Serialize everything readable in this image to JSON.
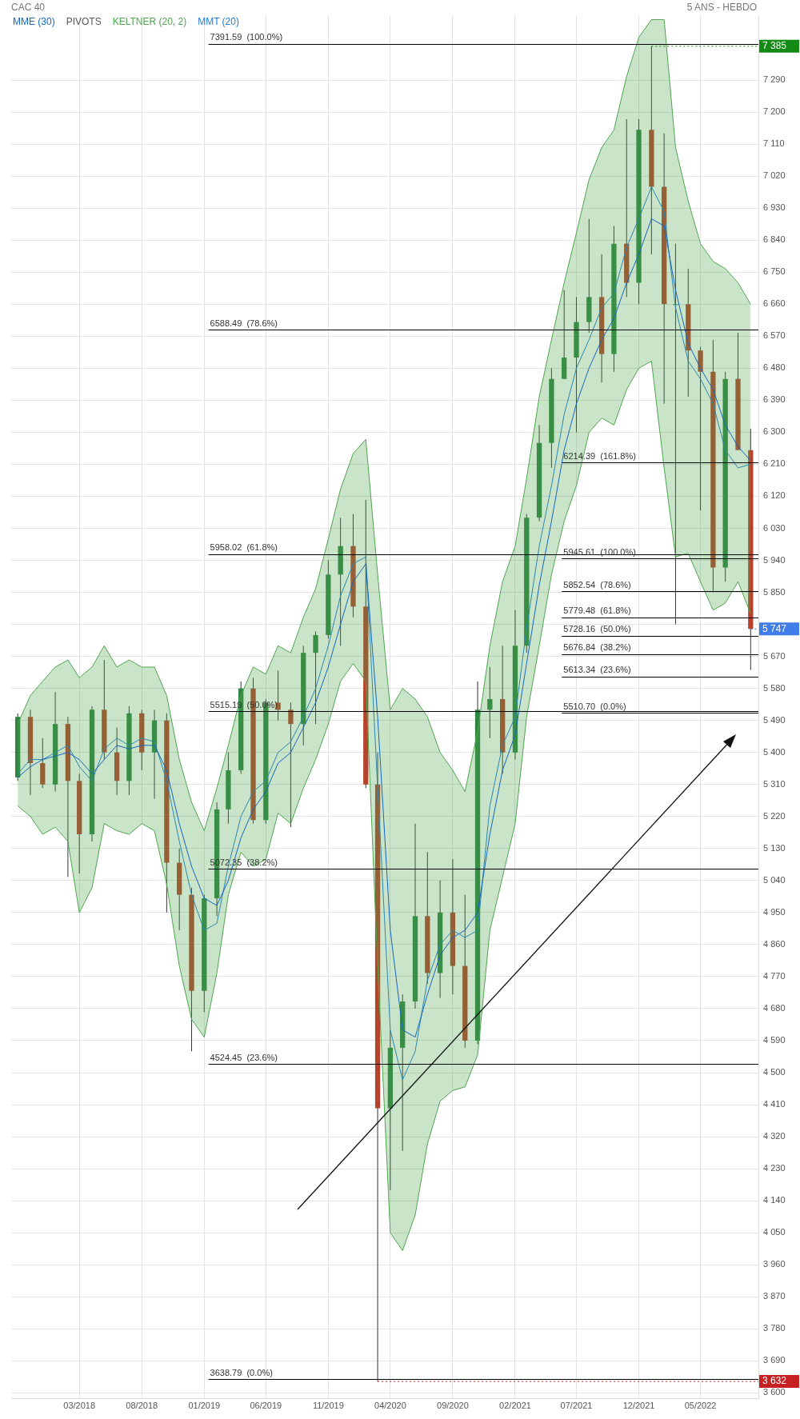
{
  "chart_data": {
    "type": "candlestick",
    "title": "CAC 40",
    "subtitle": "5 ANS - HEBDO",
    "legend": "top left",
    "grid": true,
    "marker": "none",
    "x": [
      "2017-10",
      "2017-11",
      "2017-12",
      "2018-01",
      "2018-02",
      "2018-03",
      "2018-04",
      "2018-05",
      "2018-06",
      "2018-07",
      "2018-08",
      "2018-09",
      "2018-10",
      "2018-11",
      "2018-12",
      "2019-01",
      "2019-02",
      "2019-03",
      "2019-04",
      "2019-05",
      "2019-06",
      "2019-07",
      "2019-08",
      "2019-09",
      "2019-10",
      "2019-11",
      "2019-12",
      "2020-01",
      "2020-02",
      "2020-03",
      "2020-04",
      "2020-05",
      "2020-06",
      "2020-07",
      "2020-08",
      "2020-09",
      "2020-10",
      "2020-11",
      "2020-12",
      "2021-01",
      "2021-02",
      "2021-03",
      "2021-04",
      "2021-05",
      "2021-06",
      "2021-07",
      "2021-08",
      "2021-09",
      "2021-10",
      "2021-11",
      "2021-12",
      "2022-01",
      "2022-02",
      "2022-03",
      "2022-04",
      "2022-05",
      "2022-06",
      "2022-07",
      "2022-08",
      "2022-09"
    ],
    "ohlc": [
      [
        5330,
        5510,
        5320,
        5500
      ],
      [
        5500,
        5520,
        5280,
        5370
      ],
      [
        5370,
        5440,
        5300,
        5310
      ],
      [
        5310,
        5570,
        5290,
        5480
      ],
      [
        5480,
        5500,
        5050,
        5320
      ],
      [
        5320,
        5340,
        5060,
        5170
      ],
      [
        5170,
        5530,
        5150,
        5520
      ],
      [
        5520,
        5660,
        5380,
        5400
      ],
      [
        5400,
        5470,
        5280,
        5320
      ],
      [
        5320,
        5530,
        5280,
        5510
      ],
      [
        5510,
        5520,
        5350,
        5400
      ],
      [
        5400,
        5520,
        5270,
        5490
      ],
      [
        5490,
        5510,
        4950,
        5090
      ],
      [
        5090,
        5130,
        4900,
        5000
      ],
      [
        5000,
        5020,
        4560,
        4730
      ],
      [
        4730,
        5000,
        4670,
        4990
      ],
      [
        4990,
        5260,
        4940,
        5240
      ],
      [
        5240,
        5400,
        5200,
        5350
      ],
      [
        5350,
        5600,
        5340,
        5580
      ],
      [
        5580,
        5610,
        5200,
        5210
      ],
      [
        5210,
        5550,
        5200,
        5540
      ],
      [
        5540,
        5630,
        5490,
        5520
      ],
      [
        5520,
        5540,
        5190,
        5480
      ],
      [
        5480,
        5700,
        5420,
        5680
      ],
      [
        5680,
        5740,
        5480,
        5730
      ],
      [
        5730,
        5940,
        5720,
        5900
      ],
      [
        5900,
        6060,
        5700,
        5980
      ],
      [
        5980,
        6070,
        5780,
        5810
      ],
      [
        5810,
        6110,
        5300,
        5310
      ],
      [
        5310,
        5400,
        3632,
        4400
      ],
      [
        4400,
        4620,
        4170,
        4570
      ],
      [
        4570,
        4720,
        4280,
        4700
      ],
      [
        4700,
        5200,
        4680,
        4940
      ],
      [
        4940,
        5120,
        4750,
        4780
      ],
      [
        4780,
        5040,
        4710,
        4950
      ],
      [
        4950,
        5100,
        4720,
        4800
      ],
      [
        4800,
        5000,
        4570,
        4590
      ],
      [
        4590,
        5600,
        4580,
        5520
      ],
      [
        5520,
        5640,
        5440,
        5550
      ],
      [
        5550,
        5700,
        5340,
        5400
      ],
      [
        5400,
        5800,
        5380,
        5700
      ],
      [
        5700,
        6070,
        5680,
        6060
      ],
      [
        6060,
        6320,
        6050,
        6270
      ],
      [
        6270,
        6480,
        6200,
        6450
      ],
      [
        6450,
        6700,
        6450,
        6510
      ],
      [
        6510,
        6680,
        6300,
        6610
      ],
      [
        6610,
        6900,
        6580,
        6680
      ],
      [
        6680,
        6800,
        6440,
        6520
      ],
      [
        6520,
        6880,
        6470,
        6830
      ],
      [
        6830,
        7180,
        6680,
        6720
      ],
      [
        6720,
        7180,
        6660,
        7150
      ],
      [
        7150,
        7385,
        6800,
        6990
      ],
      [
        6990,
        7140,
        6380,
        6660
      ],
      [
        6660,
        6830,
        5760,
        6660
      ],
      [
        6660,
        6760,
        6400,
        6530
      ],
      [
        6530,
        6540,
        6080,
        6470
      ],
      [
        6470,
        6560,
        5850,
        5920
      ],
      [
        5920,
        6470,
        5880,
        6450
      ],
      [
        6450,
        6580,
        6250,
        6250
      ],
      [
        6250,
        6310,
        5632,
        5747
      ]
    ],
    "series": [
      {
        "name": "MME (30)",
        "type": "line",
        "color": "#1565c0",
        "values": [
          5330,
          5360,
          5380,
          5390,
          5400,
          5380,
          5340,
          5380,
          5420,
          5410,
          5420,
          5420,
          5350,
          5200,
          5080,
          4990,
          4970,
          5040,
          5160,
          5240,
          5290,
          5370,
          5400,
          5470,
          5540,
          5640,
          5760,
          5880,
          5930,
          5500,
          4900,
          4620,
          4600,
          4720,
          4830,
          4880,
          4900,
          4950,
          5170,
          5350,
          5450,
          5650,
          5870,
          6050,
          6250,
          6380,
          6480,
          6560,
          6620,
          6720,
          6800,
          6900,
          6880,
          6700,
          6550,
          6480,
          6420,
          6320,
          6260,
          6220
        ]
      },
      {
        "type": "line",
        "color": "#4ea64e",
        "values": [
          5250,
          5220,
          5170,
          5190,
          5150,
          4950,
          5020,
          5200,
          5180,
          5170,
          5200,
          5180,
          5030,
          4800,
          4650,
          4600,
          4780,
          5000,
          5120,
          5080,
          5100,
          5230,
          5200,
          5300,
          5380,
          5480,
          5600,
          5650,
          5600,
          4800,
          4050,
          4000,
          4100,
          4300,
          4420,
          4450,
          4460,
          4550,
          4900,
          5050,
          5200,
          5500,
          5700,
          5900,
          6050,
          6150,
          6300,
          6340,
          6320,
          6420,
          6480,
          6500,
          6200,
          5950,
          5960,
          5880,
          5800,
          5820,
          5880,
          5790
        ]
      },
      {
        "name": "KELTNER (20, 2)",
        "type": "area",
        "color": "#4ea64e",
        "values": [
          5480,
          5560,
          5600,
          5640,
          5660,
          5610,
          5640,
          5700,
          5640,
          5660,
          5640,
          5640,
          5560,
          5380,
          5260,
          5180,
          5300,
          5420,
          5560,
          5640,
          5620,
          5700,
          5680,
          5780,
          5860,
          6000,
          6140,
          6240,
          6280,
          5900,
          5520,
          5580,
          5550,
          5500,
          5400,
          5350,
          5290,
          5460,
          5700,
          5880,
          5980,
          6170,
          6400,
          6560,
          6720,
          6860,
          7010,
          7100,
          7150,
          7300,
          7410,
          7460,
          7460,
          7100,
          6950,
          6830,
          6780,
          6760,
          6720,
          6660
        ]
      },
      {
        "name": "MMT (20)",
        "type": "line",
        "color": "#1e7bd6",
        "values": [
          5340,
          5380,
          5380,
          5400,
          5420,
          5360,
          5320,
          5410,
          5440,
          5420,
          5440,
          5430,
          5320,
          5150,
          5000,
          4900,
          4920,
          5080,
          5220,
          5290,
          5320,
          5400,
          5430,
          5500,
          5580,
          5700,
          5840,
          5930,
          5950,
          5300,
          4620,
          4480,
          4560,
          4760,
          4860,
          4900,
          4880,
          4900,
          5250,
          5420,
          5500,
          5750,
          5980,
          6150,
          6350,
          6480,
          6560,
          6650,
          6690,
          6820,
          6900,
          6990,
          6920,
          6650,
          6500,
          6450,
          6380,
          6250,
          6200,
          6210
        ]
      }
    ],
    "xlim": [
      "2017-09-15",
      "2022-09-20"
    ],
    "xticks": [
      {
        "value": "2018-03",
        "label": "03/2018"
      },
      {
        "value": "2018-08",
        "label": "08/2018"
      },
      {
        "value": "2019-01",
        "label": "01/2019"
      },
      {
        "value": "2019-06",
        "label": "06/2019"
      },
      {
        "value": "2019-11",
        "label": "11/2019"
      },
      {
        "value": "2020-04",
        "label": "04/2020"
      },
      {
        "value": "2020-09",
        "label": "09/2020"
      },
      {
        "value": "2021-02",
        "label": "02/2021"
      },
      {
        "value": "2021-07",
        "label": "07/2021"
      },
      {
        "value": "2021-12",
        "label": "12/2021"
      },
      {
        "value": "2022-05",
        "label": "05/2022"
      }
    ],
    "ylim": [
      3585,
      7470
    ],
    "yticks": [
      {
        "value": 3600,
        "label": "3 600"
      },
      {
        "value": 3690,
        "label": "3 690"
      },
      {
        "value": 3780,
        "label": "3 780"
      },
      {
        "value": 3870,
        "label": "3 870"
      },
      {
        "value": 3960,
        "label": "3 960"
      },
      {
        "value": 4050,
        "label": "4 050"
      },
      {
        "value": 4140,
        "label": "4 140"
      },
      {
        "value": 4230,
        "label": "4 230"
      },
      {
        "value": 4320,
        "label": "4 320"
      },
      {
        "value": 4410,
        "label": "4 410"
      },
      {
        "value": 4500,
        "label": "4 500"
      },
      {
        "value": 4590,
        "label": "4 590"
      },
      {
        "value": 4680,
        "label": "4 680"
      },
      {
        "value": 4770,
        "label": "4 770"
      },
      {
        "value": 4860,
        "label": "4 860"
      },
      {
        "value": 4950,
        "label": "4 950"
      },
      {
        "value": 5040,
        "label": "5 040"
      },
      {
        "value": 5130,
        "label": "5 130"
      },
      {
        "value": 5220,
        "label": "5 220"
      },
      {
        "value": 5310,
        "label": "5 310"
      },
      {
        "value": 5400,
        "label": "5 400"
      },
      {
        "value": 5490,
        "label": "5 490"
      },
      {
        "value": 5580,
        "label": "5 580"
      },
      {
        "value": 5670,
        "label": "5 670"
      },
      {
        "value": 5760,
        "label": null
      },
      {
        "value": 5850,
        "label": "5 850"
      },
      {
        "value": 5940,
        "label": "5 940"
      },
      {
        "value": 6030,
        "label": "6 030"
      },
      {
        "value": 6120,
        "label": "6 120"
      },
      {
        "value": 6210,
        "label": "6 210"
      },
      {
        "value": 6300,
        "label": "6 300"
      },
      {
        "value": 6390,
        "label": "6 390"
      },
      {
        "value": 6480,
        "label": "6 480"
      },
      {
        "value": 6570,
        "label": "6 570"
      },
      {
        "value": 6660,
        "label": "6 660"
      },
      {
        "value": 6750,
        "label": "6 750"
      },
      {
        "value": 6840,
        "label": "6 840"
      },
      {
        "value": 6930,
        "label": "6 930"
      },
      {
        "value": 7020,
        "label": "7 020"
      },
      {
        "value": 7110,
        "label": "7 110"
      },
      {
        "value": 7200,
        "label": "7 200"
      },
      {
        "value": 7290,
        "label": "7 290"
      }
    ],
    "ref_lines": [
      {
        "axis": "y",
        "value": 7391.59,
        "label": "7391.59  (100.0%)",
        "color": "#000000"
      },
      {
        "axis": "y",
        "value": 6588.49,
        "label": "6588.49  (78.6%)",
        "color": "#000000"
      },
      {
        "axis": "y",
        "value": 5958.02,
        "label": "5958.02  (61.8%)",
        "color": "#000000"
      },
      {
        "axis": "y",
        "value": 5515.19,
        "label": "5515.19  (50.0%)",
        "color": "#000000"
      },
      {
        "axis": "y",
        "value": 5072.35,
        "label": "5072.35  (38.2%)",
        "color": "#000000"
      },
      {
        "axis": "y",
        "value": 4524.45,
        "label": "4524.45  (23.6%)",
        "color": "#000000"
      },
      {
        "axis": "y",
        "value": 3638.79,
        "label": "3638.79  (0.0%)",
        "color": "#000000"
      },
      {
        "axis": "y",
        "value": 6214.39,
        "label": "6214.39  (161.8%)",
        "color": "#000000"
      },
      {
        "axis": "y",
        "value": 5945.61,
        "label": "5945.61  (100.0%)",
        "color": "#000000"
      },
      {
        "axis": "y",
        "value": 5852.54,
        "label": "5852.54  (78.6%)",
        "color": "#000000"
      },
      {
        "axis": "y",
        "value": 5779.48,
        "label": "5779.48  (61.8%)",
        "color": "#000000"
      },
      {
        "axis": "y",
        "value": 5728.16,
        "label": "5728.16  (50.0%)",
        "color": "#000000"
      },
      {
        "axis": "y",
        "value": 5676.84,
        "label": "5676.84  (38.2%)",
        "color": "#000000"
      },
      {
        "axis": "y",
        "value": 5613.34,
        "label": "5613.34  (23.6%)",
        "color": "#000000"
      },
      {
        "axis": "y",
        "value": 5510.7,
        "label": "5510.70  (0.0%)",
        "color": "#000000"
      }
    ],
    "annotations": [
      "PIVOTS",
      {
        "text": "7 385",
        "x": "2022-01",
        "y": 7385
      },
      {
        "text": "5 747",
        "x": "2022-09",
        "y": 5747
      },
      {
        "text": "3 632",
        "x": "2020-03",
        "y": 3632
      }
    ]
  }
}
